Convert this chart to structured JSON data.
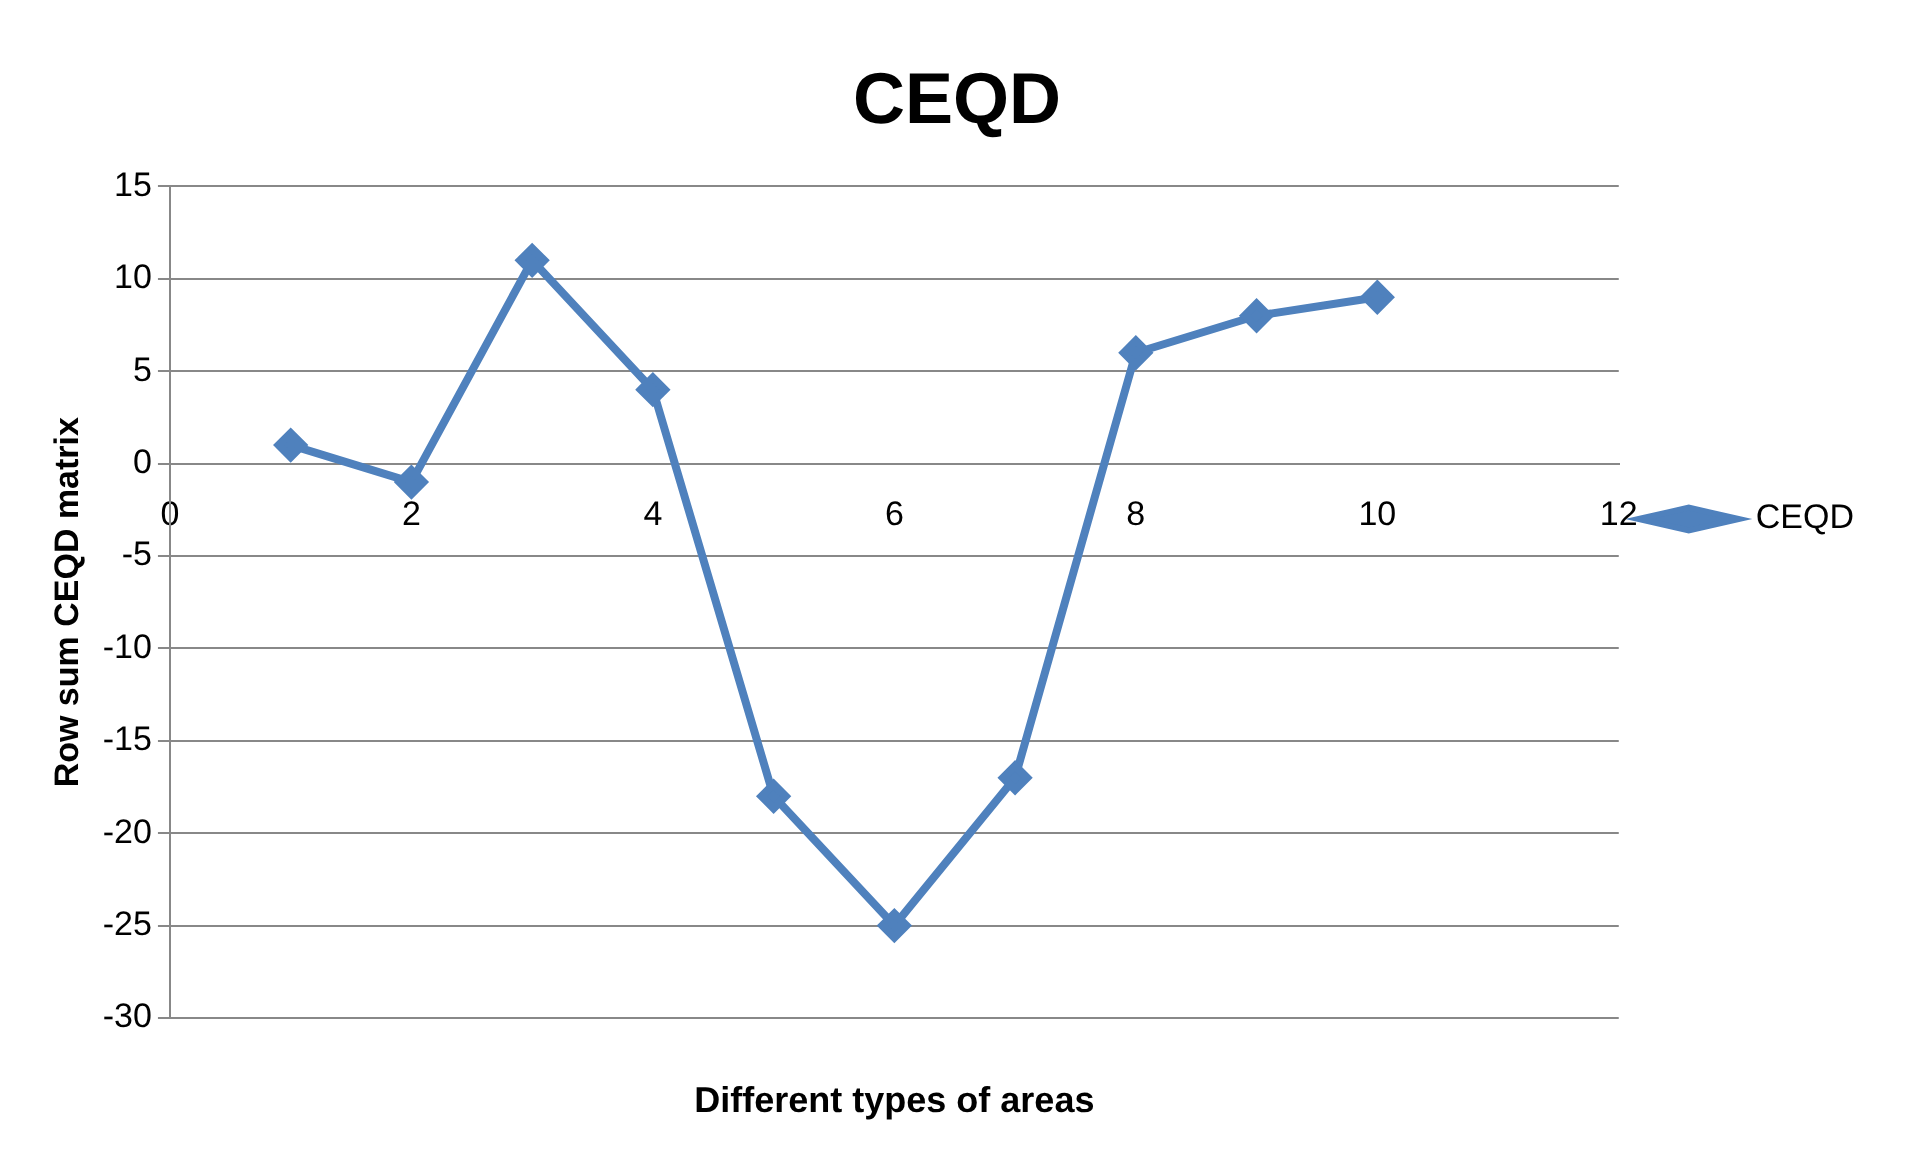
{
  "chart_data": {
    "type": "line",
    "title": "CEQD",
    "xlabel": "Different types of areas",
    "ylabel": "Row sum CEQD matrix",
    "x": [
      1,
      2,
      3,
      4,
      5,
      6,
      7,
      8,
      9,
      10
    ],
    "series": [
      {
        "name": "CEQD",
        "color": "#4f81bd",
        "values": [
          1,
          -1,
          11,
          4,
          -18,
          -25,
          -17,
          6,
          8,
          9
        ]
      }
    ],
    "xlim": [
      0,
      12
    ],
    "xticks": [
      0,
      2,
      4,
      6,
      8,
      10,
      12
    ],
    "ylim": [
      -30,
      15
    ],
    "yticks": [
      -30,
      -25,
      -20,
      -15,
      -10,
      -5,
      0,
      5,
      10,
      15
    ],
    "grid": "y",
    "legend": "right",
    "marker": "diamond",
    "line_style": "solid"
  }
}
